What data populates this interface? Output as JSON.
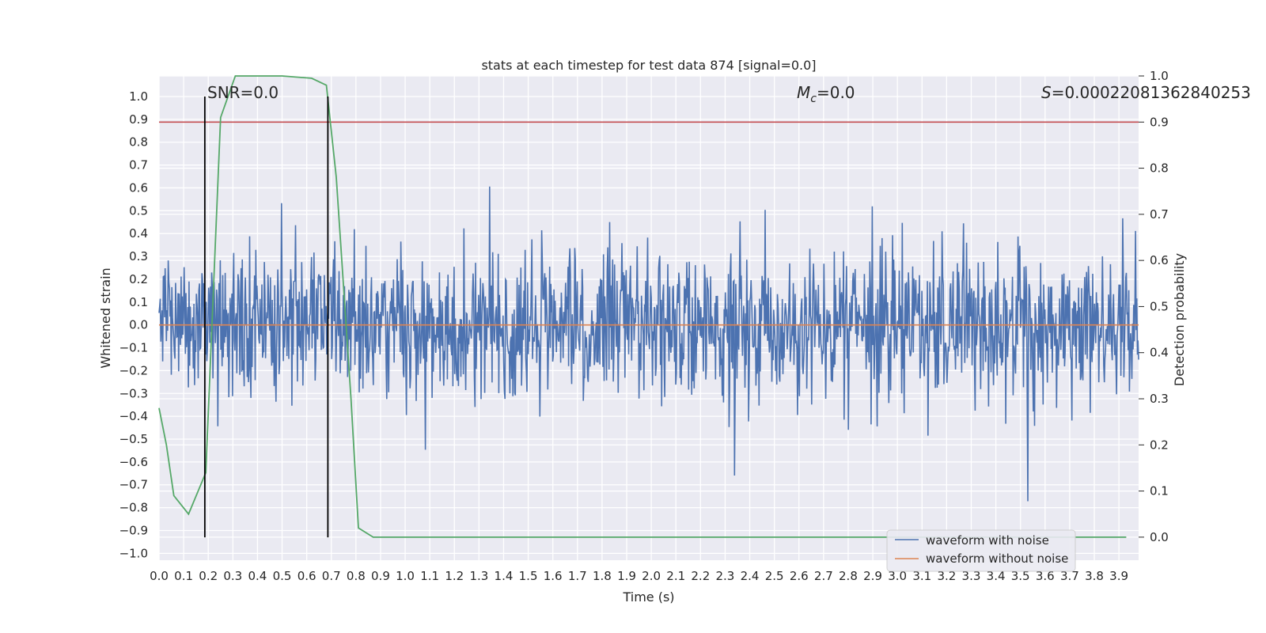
{
  "chart_data": {
    "type": "line",
    "title": "stats at each timestep for test data 874 [signal=0.0]",
    "xlabel": "Time (s)",
    "ylabel": "Whitened strain",
    "y2label": "Detection probability",
    "xlim": [
      0.0,
      3.98
    ],
    "ylim": [
      -1.03,
      1.09
    ],
    "y2lim": [
      -0.05,
      1.0
    ],
    "x_ticks": [
      "0.0",
      "0.1",
      "0.2",
      "0.3",
      "0.4",
      "0.5",
      "0.6",
      "0.7",
      "0.8",
      "0.9",
      "1.0",
      "1.1",
      "1.2",
      "1.3",
      "1.4",
      "1.5",
      "1.6",
      "1.7",
      "1.8",
      "1.9",
      "2.0",
      "2.1",
      "2.2",
      "2.3",
      "2.4",
      "2.5",
      "2.6",
      "2.7",
      "2.8",
      "2.9",
      "3.0",
      "3.1",
      "3.2",
      "3.3",
      "3.4",
      "3.5",
      "3.6",
      "3.7",
      "3.8",
      "3.9"
    ],
    "y_ticks": [
      "1.0",
      "0.9",
      "0.8",
      "0.7",
      "0.6",
      "0.5",
      "0.4",
      "0.3",
      "0.2",
      "0.1",
      "0.0",
      "−0.1",
      "−0.2",
      "−0.3",
      "−0.4",
      "−0.5",
      "−0.6",
      "−0.7",
      "−0.8",
      "−0.9",
      "−1.0"
    ],
    "y2_ticks": [
      "1.0",
      "0.9",
      "0.8",
      "0.7",
      "0.6",
      "0.5",
      "0.4",
      "0.3",
      "0.2",
      "0.1",
      "0.0"
    ],
    "grid": true,
    "legend_position": "lower-right",
    "series": [
      {
        "name": "waveform with noise",
        "color": "#4c72b0",
        "axis": "left",
        "description_kind": "noise",
        "amplitude_range": [
          -0.95,
          1.0
        ]
      },
      {
        "name": "waveform without noise",
        "color": "#dd8452",
        "axis": "left",
        "constant": 0.0
      },
      {
        "color": "#55a868",
        "axis": "right",
        "x": [
          0.0,
          0.03,
          0.06,
          0.12,
          0.19,
          0.25,
          0.31,
          0.38,
          0.5,
          0.62,
          0.68,
          0.72,
          0.78,
          0.81,
          0.87,
          1.0,
          2.0,
          3.0,
          3.93
        ],
        "y": [
          0.28,
          0.2,
          0.09,
          0.05,
          0.14,
          0.91,
          1.0,
          1.0,
          1.0,
          0.995,
          0.98,
          0.78,
          0.3,
          0.02,
          0.0,
          0.0,
          0.0,
          0.0,
          0.0
        ]
      }
    ],
    "hlines": [
      {
        "axis": "right",
        "y": 0.9,
        "color": "#c44e52"
      }
    ],
    "vlines": [
      {
        "x": 0.186,
        "color": "#000000",
        "y_from": -0.93,
        "y_to": 1.0
      },
      {
        "x": 0.686,
        "color": "#000000",
        "y_from": -0.93,
        "y_to": 1.0
      }
    ],
    "annotations": [
      {
        "id": "snr",
        "text": "SNR=0.0"
      },
      {
        "id": "mc",
        "prefix": "M",
        "sub": "c",
        "text": "=0.0"
      },
      {
        "id": "s",
        "prefix": "S",
        "text": "=0.00022081362840253"
      }
    ]
  }
}
